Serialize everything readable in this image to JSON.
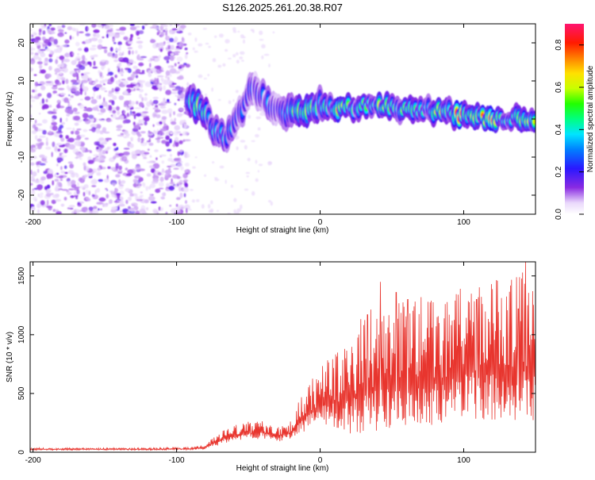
{
  "title": "S126.2025.261.20.38.R07",
  "chart_data": [
    {
      "type": "heatmap",
      "name": "spectrogram",
      "xlabel": "Height of straight line (km)",
      "ylabel": "Frequency (Hz)",
      "xlim": [
        -202,
        150
      ],
      "ylim": [
        -25,
        25
      ],
      "xticks": [
        -200,
        -100,
        0,
        100
      ],
      "xtick_labels": [
        "-200",
        "-100",
        "0",
        "100"
      ],
      "yticks": [
        -20,
        -10,
        0,
        10,
        20
      ],
      "ytick_labels": [
        "-20",
        "-10",
        "0",
        "10",
        "20"
      ],
      "noise_region_km": [
        -202,
        -92
      ],
      "signal_track": [
        {
          "x": -92,
          "f": 6,
          "a": 0.45
        },
        {
          "x": -88,
          "f": 4,
          "a": 0.5
        },
        {
          "x": -84,
          "f": 2.5,
          "a": 0.7
        },
        {
          "x": -78,
          "f": 0,
          "a": 0.45
        },
        {
          "x": -72,
          "f": -3,
          "a": 0.4
        },
        {
          "x": -66,
          "f": -4.5,
          "a": 0.4
        },
        {
          "x": -60,
          "f": -2,
          "a": 0.35
        },
        {
          "x": -54,
          "f": 3,
          "a": 0.4
        },
        {
          "x": -48,
          "f": 9,
          "a": 0.3
        },
        {
          "x": -42,
          "f": 7,
          "a": 0.35
        },
        {
          "x": -36,
          "f": 4,
          "a": 0.35
        },
        {
          "x": -30,
          "f": 2,
          "a": 0.35
        },
        {
          "x": -24,
          "f": 1.5,
          "a": 0.45
        },
        {
          "x": -18,
          "f": 2,
          "a": 0.55
        },
        {
          "x": -12,
          "f": 2.5,
          "a": 0.75
        },
        {
          "x": -6,
          "f": 3,
          "a": 0.55
        },
        {
          "x": 0,
          "f": 3.5,
          "a": 0.5
        },
        {
          "x": 6,
          "f": 3,
          "a": 0.6
        },
        {
          "x": 12,
          "f": 2.5,
          "a": 0.75
        },
        {
          "x": 18,
          "f": 3,
          "a": 0.7
        },
        {
          "x": 24,
          "f": 3,
          "a": 0.55
        },
        {
          "x": 30,
          "f": 3.5,
          "a": 0.5
        },
        {
          "x": 36,
          "f": 4,
          "a": 0.55
        },
        {
          "x": 42,
          "f": 3.5,
          "a": 0.6
        },
        {
          "x": 48,
          "f": 3,
          "a": 0.5
        },
        {
          "x": 54,
          "f": 3,
          "a": 0.5
        },
        {
          "x": 60,
          "f": 2.5,
          "a": 0.55
        },
        {
          "x": 66,
          "f": 2.5,
          "a": 0.5
        },
        {
          "x": 72,
          "f": 2,
          "a": 0.5
        },
        {
          "x": 78,
          "f": 2.5,
          "a": 0.6
        },
        {
          "x": 84,
          "f": 2,
          "a": 0.65
        },
        {
          "x": 90,
          "f": 1.5,
          "a": 0.6
        },
        {
          "x": 96,
          "f": 1,
          "a": 0.85
        },
        {
          "x": 102,
          "f": 0.5,
          "a": 0.8
        },
        {
          "x": 108,
          "f": 0.5,
          "a": 0.7
        },
        {
          "x": 114,
          "f": 0,
          "a": 0.75
        },
        {
          "x": 120,
          "f": 0,
          "a": 0.8
        },
        {
          "x": 126,
          "f": 0,
          "a": 0.65
        },
        {
          "x": 132,
          "f": 0,
          "a": 0.65
        },
        {
          "x": 138,
          "f": 0,
          "a": 0.6
        },
        {
          "x": 144,
          "f": 0,
          "a": 0.75
        },
        {
          "x": 150,
          "f": 0,
          "a": 0.7
        }
      ],
      "colorbar": {
        "label": "Normalized spectral amplitude",
        "range": [
          0,
          0.9
        ],
        "ticks": [
          0.0,
          0.2,
          0.4,
          0.6,
          0.8
        ],
        "tick_labels": [
          "0.0",
          "0.2",
          "0.4",
          "0.6",
          "0.8"
        ]
      }
    },
    {
      "type": "line",
      "name": "snr",
      "xlabel": "Height of straight line (km)",
      "ylabel": "SNR (10 * v/v)",
      "xlim": [
        -202,
        150
      ],
      "ylim": [
        0,
        1620
      ],
      "xticks": [
        -200,
        -100,
        0,
        100
      ],
      "xtick_labels": [
        "-200",
        "-100",
        "0",
        "100"
      ],
      "yticks": [
        0,
        500,
        1000,
        1500
      ],
      "ytick_labels": [
        "0",
        "500",
        "1000",
        "1500"
      ],
      "line_color": "#e8352e",
      "envelope": {
        "x": [
          -202,
          -160,
          -120,
          -90,
          -80,
          -70,
          -60,
          -50,
          -40,
          -30,
          -20,
          -10,
          0,
          10,
          20,
          30,
          40,
          50,
          60,
          70,
          80,
          90,
          100,
          110,
          120,
          130,
          140,
          150
        ],
        "base": [
          25,
          25,
          25,
          28,
          40,
          100,
          140,
          160,
          170,
          140,
          160,
          330,
          390,
          420,
          440,
          520,
          560,
          580,
          600,
          640,
          600,
          650,
          680,
          690,
          700,
          700,
          720,
          700
        ],
        "spread": [
          12,
          12,
          12,
          15,
          25,
          70,
          90,
          100,
          100,
          90,
          120,
          260,
          340,
          420,
          520,
          650,
          700,
          700,
          720,
          720,
          700,
          720,
          720,
          760,
          780,
          800,
          820,
          800
        ]
      },
      "peaks": [
        {
          "x": 42,
          "y": 1450
        },
        {
          "x": 53,
          "y": 1360
        },
        {
          "x": 61,
          "y": 1300
        },
        {
          "x": 94,
          "y": 1290
        },
        {
          "x": 109,
          "y": 1300
        },
        {
          "x": 118,
          "y": 1110
        },
        {
          "x": 138,
          "y": 1220
        },
        {
          "x": 143,
          "y": 1620
        },
        {
          "x": 148,
          "y": 1370
        },
        {
          "x": 33,
          "y": 1170
        }
      ]
    }
  ]
}
